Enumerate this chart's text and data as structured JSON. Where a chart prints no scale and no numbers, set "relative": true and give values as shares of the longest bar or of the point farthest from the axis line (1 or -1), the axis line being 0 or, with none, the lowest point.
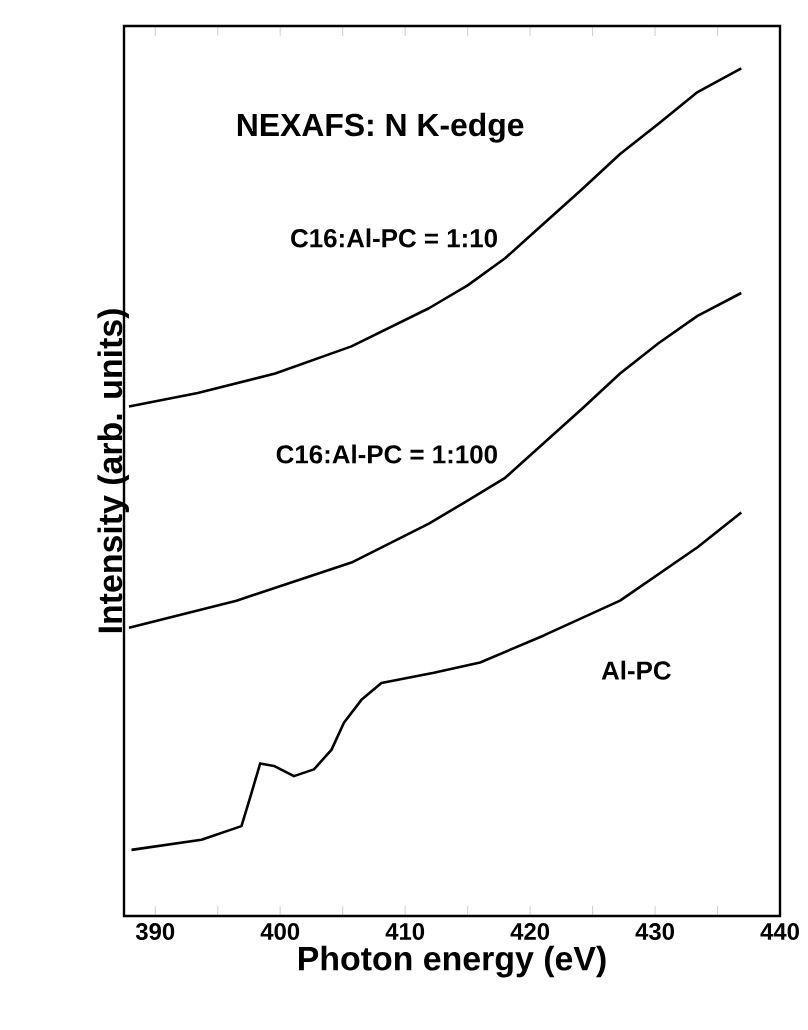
{
  "chart_data": {
    "type": "line",
    "title": "NEXAFS: N K-edge",
    "xlabel": "Photon energy (eV)",
    "ylabel": "Intensity (arb. units)",
    "relative": true,
    "xlim": [
      387.5,
      440
    ],
    "xticks": [
      390,
      {
        "value": 395,
        "label": null
      },
      400,
      {
        "value": 405,
        "label": null
      },
      410,
      {
        "value": 415,
        "label": null
      },
      420,
      {
        "value": 425,
        "label": null
      },
      430,
      {
        "value": 435,
        "label": null
      },
      440
    ],
    "marker": "none",
    "line_style": "solid",
    "grid": false,
    "legend": false,
    "tick_labels": "x",
    "series": [
      {
        "name": "C16:Al-PC = 1:10",
        "color": "#000000",
        "x": [
          387.9,
          393.4,
          399.6,
          405.7,
          411.9,
          415.0,
          418.0,
          421.1,
          424.2,
          427.2,
          430.3,
          433.4,
          436.9
        ],
        "values": [
          0.601,
          0.617,
          0.64,
          0.672,
          0.717,
          0.744,
          0.776,
          0.817,
          0.858,
          0.899,
          0.935,
          0.972,
          1.0
        ]
      },
      {
        "name": "C16:Al-PC = 1:100",
        "color": "#000000",
        "x": [
          387.9,
          396.5,
          405.7,
          411.9,
          415.0,
          418.0,
          421.1,
          424.2,
          427.2,
          430.3,
          433.4,
          436.9
        ],
        "values": [
          0.34,
          0.372,
          0.417,
          0.463,
          0.49,
          0.517,
          0.558,
          0.599,
          0.64,
          0.676,
          0.708,
          0.735
        ]
      },
      {
        "name": "Al-PC",
        "color": "#000000",
        "x": [
          388.1,
          393.7,
          396.9,
          397.7,
          398.4,
          399.5,
          401.1,
          402.7,
          404.1,
          405.1,
          406.5,
          408.1,
          412.3,
          416.0,
          421.1,
          427.2,
          433.4,
          436.9
        ],
        "values": [
          0.078,
          0.09,
          0.106,
          0.145,
          0.18,
          0.177,
          0.165,
          0.173,
          0.196,
          0.228,
          0.255,
          0.275,
          0.287,
          0.299,
          0.331,
          0.372,
          0.435,
          0.476
        ]
      }
    ]
  }
}
